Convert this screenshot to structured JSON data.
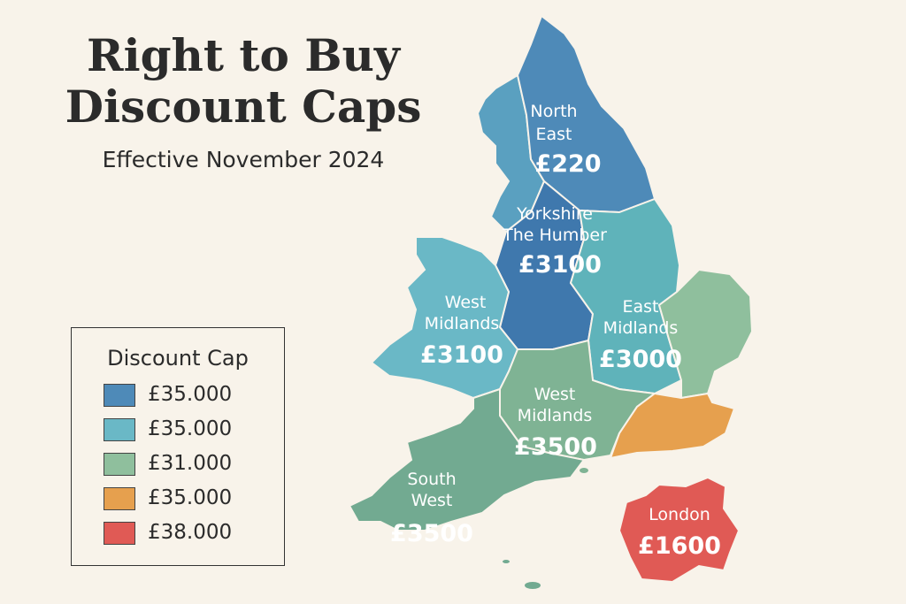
{
  "title_line1": "Right to Buy",
  "title_line2": "Discount Caps",
  "subtitle": "Effective November 2024",
  "legend": {
    "title": "Discount Cap",
    "items": [
      {
        "label": "£35.000",
        "color": "#4e8ab8"
      },
      {
        "label": "£35.000",
        "color": "#6ab8c6"
      },
      {
        "label": "£31.000",
        "color": "#8fbf9d"
      },
      {
        "label": "£35.000",
        "color": "#e6a04e"
      },
      {
        "label": "£38.000",
        "color": "#e05a55"
      }
    ]
  },
  "regions": {
    "north_east": {
      "name1": "North",
      "name2": "East",
      "value": "£220",
      "color": "#4e8ab8"
    },
    "yorkshire": {
      "name1": "Yorkshire",
      "name2": "The Humber",
      "value": "£3100",
      "color": "#3f78ad"
    },
    "wales": {
      "name1": "West",
      "name2": "Midlands",
      "value": "£3100",
      "color": "#6ab8c6"
    },
    "east_midlands": {
      "name1": "East",
      "name2": "Midlands",
      "value": "£3000",
      "color": "#5fb3ba"
    },
    "west_midlands": {
      "name1": "West",
      "name2": "Midlands",
      "value": "£3500",
      "color": "#7fb394"
    },
    "south_west": {
      "name1": "South",
      "name2": "West",
      "value": "£3500",
      "color": "#72aa91"
    },
    "south_east": {
      "name1": "",
      "name2": "",
      "value": "",
      "color": "#e6a04e"
    },
    "east_of_england": {
      "name1": "",
      "name2": "",
      "value": "",
      "color": "#8fbf9d"
    },
    "london": {
      "name1": "London",
      "name2": "",
      "value": "£1600",
      "color": "#e05a55"
    }
  }
}
